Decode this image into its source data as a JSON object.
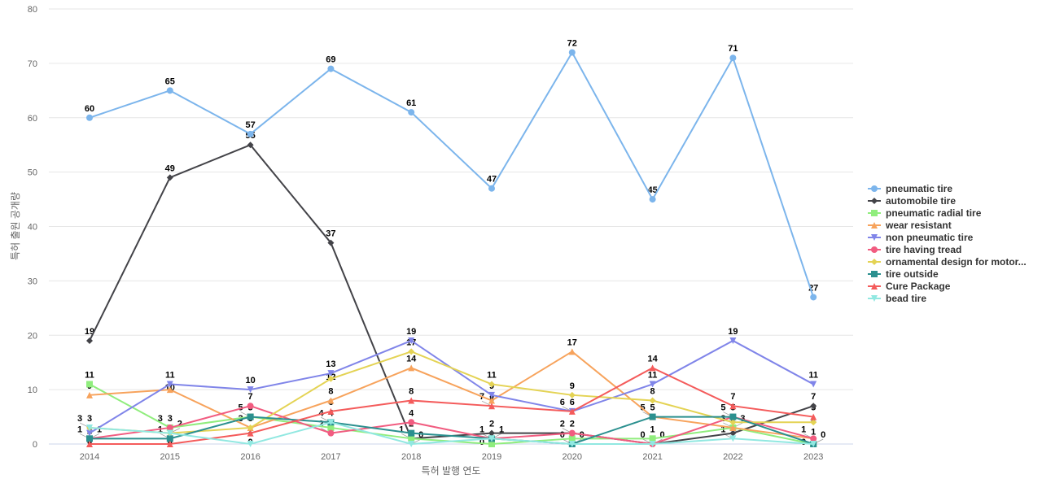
{
  "chart_data": {
    "type": "line",
    "xlabel": "특허 발행 연도",
    "ylabel": "특허 출원 공개량",
    "ylim": [
      0,
      80
    ],
    "yticks": [
      0,
      10,
      20,
      30,
      40,
      50,
      60,
      70,
      80
    ],
    "grid": true,
    "legend_position": "right",
    "categories": [
      "2014",
      "2015",
      "2016",
      "2017",
      "2018",
      "2019",
      "2020",
      "2021",
      "2022",
      "2023"
    ],
    "series": [
      {
        "name": "pneumatic tire",
        "color": "#7cb5ec",
        "marker": "circle",
        "values": [
          60,
          65,
          57,
          69,
          61,
          47,
          72,
          45,
          71,
          27
        ]
      },
      {
        "name": "automobile tire",
        "color": "#434348",
        "marker": "diamond",
        "values": [
          19,
          49,
          55,
          37,
          1,
          2,
          2,
          0,
          2,
          7
        ]
      },
      {
        "name": "pneumatic radial tire",
        "color": "#90ed7d",
        "marker": "square",
        "values": [
          11,
          3,
          5,
          3,
          1,
          0,
          1,
          1,
          3,
          0
        ]
      },
      {
        "name": "wear resistant",
        "color": "#f7a35c",
        "marker": "triangle",
        "values": [
          9,
          10,
          3,
          8,
          14,
          8,
          17,
          5,
          3,
          1
        ]
      },
      {
        "name": "non pneumatic tire",
        "color": "#8085e9",
        "marker": "triangle-down",
        "values": [
          2,
          11,
          10,
          13,
          19,
          9,
          6,
          11,
          19,
          11
        ]
      },
      {
        "name": "tire having tread",
        "color": "#f15c80",
        "marker": "circle",
        "values": [
          1,
          3,
          7,
          2,
          4,
          1,
          2,
          0,
          5,
          1
        ]
      },
      {
        "name": "ornamental design for motor...",
        "color": "#e4d354",
        "marker": "diamond",
        "values": [
          3,
          2,
          3,
          12,
          17,
          11,
          9,
          8,
          4,
          4
        ]
      },
      {
        "name": "tire outside",
        "color": "#2b908f",
        "marker": "square",
        "values": [
          1,
          1,
          5,
          4,
          2,
          1,
          0,
          5,
          5,
          0
        ]
      },
      {
        "name": "Cure Package",
        "color": "#f45b5b",
        "marker": "triangle",
        "values": [
          0,
          0,
          2,
          6,
          8,
          7,
          6,
          14,
          7,
          5
        ]
      },
      {
        "name": "bead tire",
        "color": "#91e8e1",
        "marker": "triangle-down",
        "values": [
          3,
          2,
          0,
          4,
          0,
          1,
          0,
          0,
          1,
          0
        ]
      }
    ]
  }
}
